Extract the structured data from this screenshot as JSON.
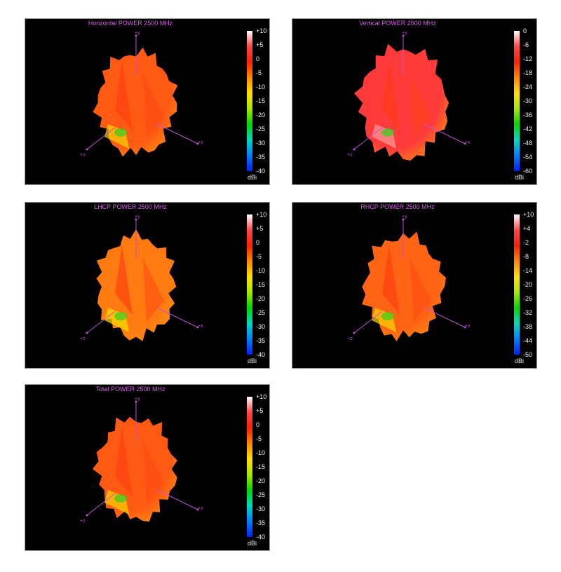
{
  "colors": {
    "background": "#000000",
    "title": "#d060e0",
    "axis": "#c050d8",
    "scale_text": "#f0f0f0",
    "colorscale": [
      "#0020ff",
      "#0080ff",
      "#00d8c0",
      "#00d800",
      "#a8e800",
      "#ffe000",
      "#ff8800",
      "#ff2000",
      "#ff4848",
      "#ffffff"
    ]
  },
  "chart_data": [
    {
      "type": "heatmap",
      "subtype": "3d-radiation-pattern",
      "title": "Horizontal POWER 2500  MHz",
      "axes": [
        "+y",
        "+x",
        "+z"
      ],
      "colorbar": {
        "unit": "dBi",
        "range": [
          -40,
          10
        ],
        "ticks": [
          "+10",
          "+5",
          "0",
          "-5",
          "-10",
          "-15",
          "-20",
          "-25",
          "-30",
          "-35",
          "-40"
        ]
      },
      "dominant_color": "#ff5a14",
      "highlight_color": "#ffd400"
    },
    {
      "type": "heatmap",
      "subtype": "3d-radiation-pattern",
      "title": "Vertical POWER 2500  MHz",
      "axes": [
        "+y",
        "+x",
        "+z"
      ],
      "colorbar": {
        "unit": "dBi",
        "range": [
          -60,
          0
        ],
        "ticks": [
          "0",
          "-6",
          "-12",
          "-18",
          "-24",
          "-30",
          "-36",
          "-42",
          "-48",
          "-54",
          "-60"
        ]
      },
      "dominant_color": "#ff3a3a",
      "highlight_color": "#ff9a9a"
    },
    {
      "type": "heatmap",
      "subtype": "3d-radiation-pattern",
      "title": "LHCP POWER 2500  MHz",
      "axes": [
        "+y",
        "+x",
        "+z"
      ],
      "colorbar": {
        "unit": "dBi",
        "range": [
          -40,
          10
        ],
        "ticks": [
          "+10",
          "+5",
          "0",
          "-5",
          "-10",
          "-15",
          "-20",
          "-25",
          "-30",
          "-35",
          "-40"
        ]
      },
      "dominant_color": "#ff7a10",
      "highlight_color": "#ffe000"
    },
    {
      "type": "heatmap",
      "subtype": "3d-radiation-pattern",
      "title": "RHCP POWER 2500  MHz",
      "axes": [
        "+y",
        "+x",
        "+z"
      ],
      "colorbar": {
        "unit": "dBi",
        "range": [
          -50,
          10
        ],
        "ticks": [
          "+10",
          "+4",
          "-2",
          "-8",
          "-14",
          "-20",
          "-26",
          "-32",
          "-38",
          "-44",
          "-50"
        ]
      },
      "dominant_color": "#ff6414",
      "highlight_color": "#ffd400"
    },
    {
      "type": "heatmap",
      "subtype": "3d-radiation-pattern",
      "title": "Total POWER 2500  MHz",
      "axes": [
        "+y",
        "+x",
        "+z"
      ],
      "colorbar": {
        "unit": "dBi",
        "range": [
          -40,
          10
        ],
        "ticks": [
          "+10",
          "+5",
          "0",
          "-5",
          "-10",
          "-15",
          "-20",
          "-25",
          "-30",
          "-35",
          "-40"
        ]
      },
      "dominant_color": "#ff5a14",
      "highlight_color": "#ffd400"
    }
  ]
}
